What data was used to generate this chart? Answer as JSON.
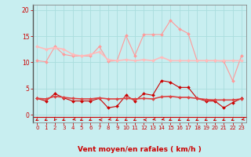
{
  "xlabel": "Vent moyen/en rafales ( km/h )",
  "bg_color": "#c8eef0",
  "grid_color": "#aadddd",
  "ylim": [
    -1.5,
    21
  ],
  "xlim": [
    -0.5,
    23.5
  ],
  "yticks": [
    0,
    5,
    10,
    15,
    20
  ],
  "xticks": [
    0,
    1,
    2,
    3,
    4,
    5,
    6,
    7,
    8,
    9,
    10,
    11,
    12,
    13,
    14,
    15,
    16,
    17,
    18,
    19,
    20,
    21,
    22,
    23
  ],
  "series": [
    {
      "label": "rafales_max",
      "color": "#ff9999",
      "linewidth": 0.8,
      "markersize": 2.0,
      "marker": "D",
      "y": [
        10.3,
        10.1,
        13.0,
        11.5,
        11.2,
        11.2,
        11.2,
        13.0,
        10.2,
        10.3,
        15.1,
        11.3,
        15.3,
        15.3,
        15.3,
        18.0,
        16.4,
        15.5,
        10.3,
        10.3,
        10.3,
        10.2,
        6.5,
        11.3
      ]
    },
    {
      "label": "rafales_trend",
      "color": "#ffbbbb",
      "linewidth": 1.2,
      "markersize": 2.0,
      "marker": "D",
      "y": [
        13.0,
        12.5,
        12.8,
        12.5,
        11.5,
        11.2,
        11.5,
        12.0,
        10.5,
        10.3,
        10.5,
        10.3,
        10.5,
        10.3,
        11.0,
        10.3,
        10.3,
        10.3,
        10.3,
        10.3,
        10.3,
        10.3,
        10.3,
        10.3
      ]
    },
    {
      "label": "vent_moyen",
      "color": "#cc0000",
      "linewidth": 0.8,
      "markersize": 2.0,
      "marker": "D",
      "y": [
        3.1,
        2.6,
        4.0,
        3.2,
        2.6,
        2.6,
        2.6,
        3.1,
        1.3,
        1.6,
        3.7,
        2.6,
        4.0,
        3.7,
        6.5,
        6.2,
        5.2,
        5.2,
        3.1,
        2.6,
        2.6,
        1.3,
        2.3,
        3.1
      ]
    },
    {
      "label": "vent_trend",
      "color": "#dd4444",
      "linewidth": 1.2,
      "markersize": 2.0,
      "marker": "D",
      "y": [
        3.1,
        3.0,
        3.5,
        3.3,
        3.1,
        3.0,
        3.0,
        3.2,
        3.0,
        3.0,
        3.1,
        3.0,
        3.1,
        3.0,
        3.4,
        3.5,
        3.3,
        3.3,
        3.1,
        2.9,
        2.8,
        2.8,
        2.8,
        3.0
      ]
    }
  ],
  "wind_dirs": [
    225,
    225,
    202,
    225,
    247,
    225,
    225,
    270,
    247,
    225,
    225,
    225,
    270,
    247,
    247,
    225,
    225,
    225,
    225,
    225,
    225,
    225,
    225,
    247
  ],
  "arrow_color": "#cc0000",
  "axis_color": "#888888",
  "tick_color": "#cc0000",
  "xlabel_color": "#cc0000"
}
